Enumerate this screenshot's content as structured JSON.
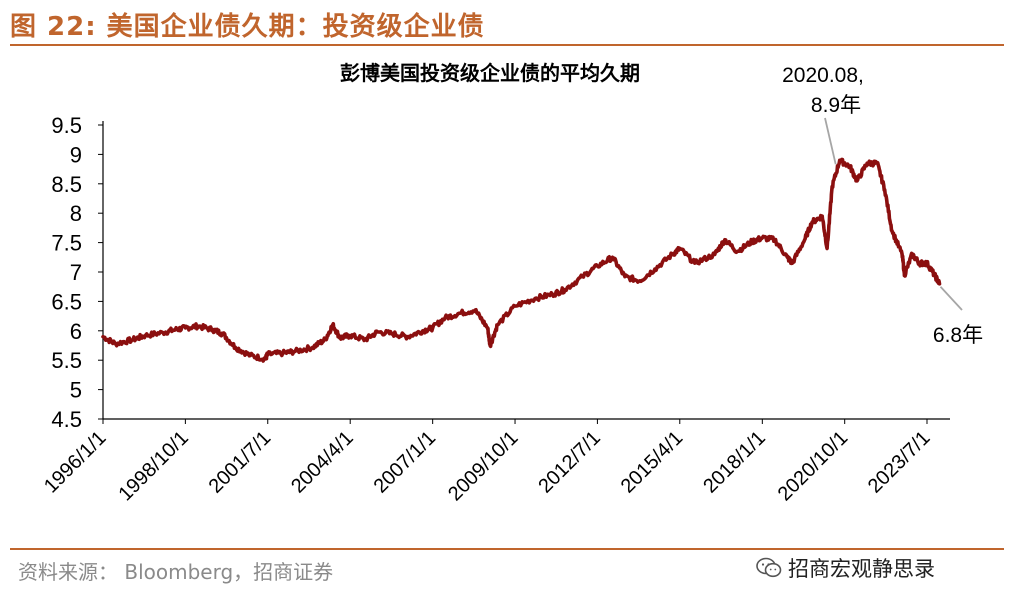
{
  "figure": {
    "title": "图 22:  美国企业债久期：投资级企业债",
    "source": "资料来源：  Bloomberg，招商证券",
    "brand": "招商宏观静思录",
    "brand_icon": "wechat-icon"
  },
  "colors": {
    "accent": "#c0652d",
    "series": "#8b0f0f",
    "axis": "#000000",
    "annotation_line": "#a6a6a6"
  },
  "chart_data": {
    "type": "line",
    "title": "彭博美国投资级企业债的平均久期",
    "xlabel": "",
    "ylabel": "",
    "ylim": [
      4.5,
      9.5
    ],
    "yticks": [
      4.5,
      5,
      5.5,
      6,
      6.5,
      7,
      7.5,
      8,
      8.5,
      9,
      9.5
    ],
    "ytick_labels": [
      "4.5",
      "5",
      "5.5",
      "6",
      "6.5",
      "7",
      "7.5",
      "8",
      "8.5",
      "9",
      "9.5"
    ],
    "xlim": [
      "1996-01-01",
      "2023-12-31"
    ],
    "xtick_labels": [
      "1996/1/1",
      "1998/10/1",
      "2001/7/1",
      "2004/4/1",
      "2007/1/1",
      "2009/10/1",
      "2012/7/1",
      "2015/4/1",
      "2018/1/1",
      "2020/10/1",
      "2023/7/1"
    ],
    "grid": false,
    "legend": "none",
    "series": [
      {
        "points": [
          [
            "1996-01-01",
            5.9
          ],
          [
            "1996-06-01",
            5.78
          ],
          [
            "1997-01-01",
            5.85
          ],
          [
            "1997-06-01",
            5.92
          ],
          [
            "1998-01-01",
            5.97
          ],
          [
            "1998-06-01",
            6.02
          ],
          [
            "1998-10-01",
            6.05
          ],
          [
            "1999-03-01",
            6.08
          ],
          [
            "1999-09-01",
            6.02
          ],
          [
            "2000-01-01",
            5.95
          ],
          [
            "2000-06-01",
            5.72
          ],
          [
            "2000-12-01",
            5.58
          ],
          [
            "2001-06-01",
            5.52
          ],
          [
            "2001-07-01",
            5.6
          ],
          [
            "2002-01-01",
            5.62
          ],
          [
            "2002-06-01",
            5.65
          ],
          [
            "2003-01-01",
            5.72
          ],
          [
            "2003-06-01",
            5.85
          ],
          [
            "2003-09-01",
            6.1
          ],
          [
            "2003-12-01",
            5.88
          ],
          [
            "2004-04-01",
            5.92
          ],
          [
            "2004-10-01",
            5.85
          ],
          [
            "2005-03-01",
            5.98
          ],
          [
            "2005-09-01",
            5.95
          ],
          [
            "2006-03-01",
            5.9
          ],
          [
            "2006-09-01",
            6.0
          ],
          [
            "2007-01-01",
            6.05
          ],
          [
            "2007-06-01",
            6.22
          ],
          [
            "2007-12-01",
            6.3
          ],
          [
            "2008-06-01",
            6.35
          ],
          [
            "2008-11-01",
            6.05
          ],
          [
            "2008-12-01",
            5.75
          ],
          [
            "2009-03-01",
            6.1
          ],
          [
            "2009-10-01",
            6.42
          ],
          [
            "2010-06-01",
            6.55
          ],
          [
            "2011-01-01",
            6.62
          ],
          [
            "2011-06-01",
            6.7
          ],
          [
            "2012-01-01",
            6.92
          ],
          [
            "2012-07-01",
            7.1
          ],
          [
            "2013-01-01",
            7.25
          ],
          [
            "2013-06-01",
            6.92
          ],
          [
            "2013-12-01",
            6.85
          ],
          [
            "2014-06-01",
            7.05
          ],
          [
            "2015-01-01",
            7.3
          ],
          [
            "2015-04-01",
            7.4
          ],
          [
            "2015-10-01",
            7.15
          ],
          [
            "2016-06-01",
            7.3
          ],
          [
            "2016-10-01",
            7.55
          ],
          [
            "2017-03-01",
            7.35
          ],
          [
            "2017-09-01",
            7.52
          ],
          [
            "2018-01-01",
            7.58
          ],
          [
            "2018-06-01",
            7.55
          ],
          [
            "2018-11-01",
            7.25
          ],
          [
            "2019-01-01",
            7.15
          ],
          [
            "2019-06-01",
            7.55
          ],
          [
            "2019-09-01",
            7.85
          ],
          [
            "2020-01-01",
            7.95
          ],
          [
            "2020-03-01",
            7.4
          ],
          [
            "2020-05-01",
            8.45
          ],
          [
            "2020-08-01",
            8.9
          ],
          [
            "2020-12-01",
            8.8
          ],
          [
            "2021-03-01",
            8.55
          ],
          [
            "2021-07-01",
            8.85
          ],
          [
            "2021-11-01",
            8.85
          ],
          [
            "2022-02-01",
            8.4
          ],
          [
            "2022-05-01",
            7.7
          ],
          [
            "2022-09-01",
            7.3
          ],
          [
            "2022-10-01",
            6.95
          ],
          [
            "2023-01-01",
            7.3
          ],
          [
            "2023-04-01",
            7.15
          ],
          [
            "2023-07-01",
            7.15
          ],
          [
            "2023-10-01",
            6.95
          ],
          [
            "2023-12-01",
            6.8
          ]
        ]
      }
    ],
    "annotations": [
      {
        "text_lines": [
          "2020.08,",
          "8.9年"
        ],
        "x": "2020-08-01",
        "y": 8.9
      },
      {
        "text_lines": [
          "6.8年"
        ],
        "x": "2023-12-01",
        "y": 6.8
      }
    ]
  }
}
